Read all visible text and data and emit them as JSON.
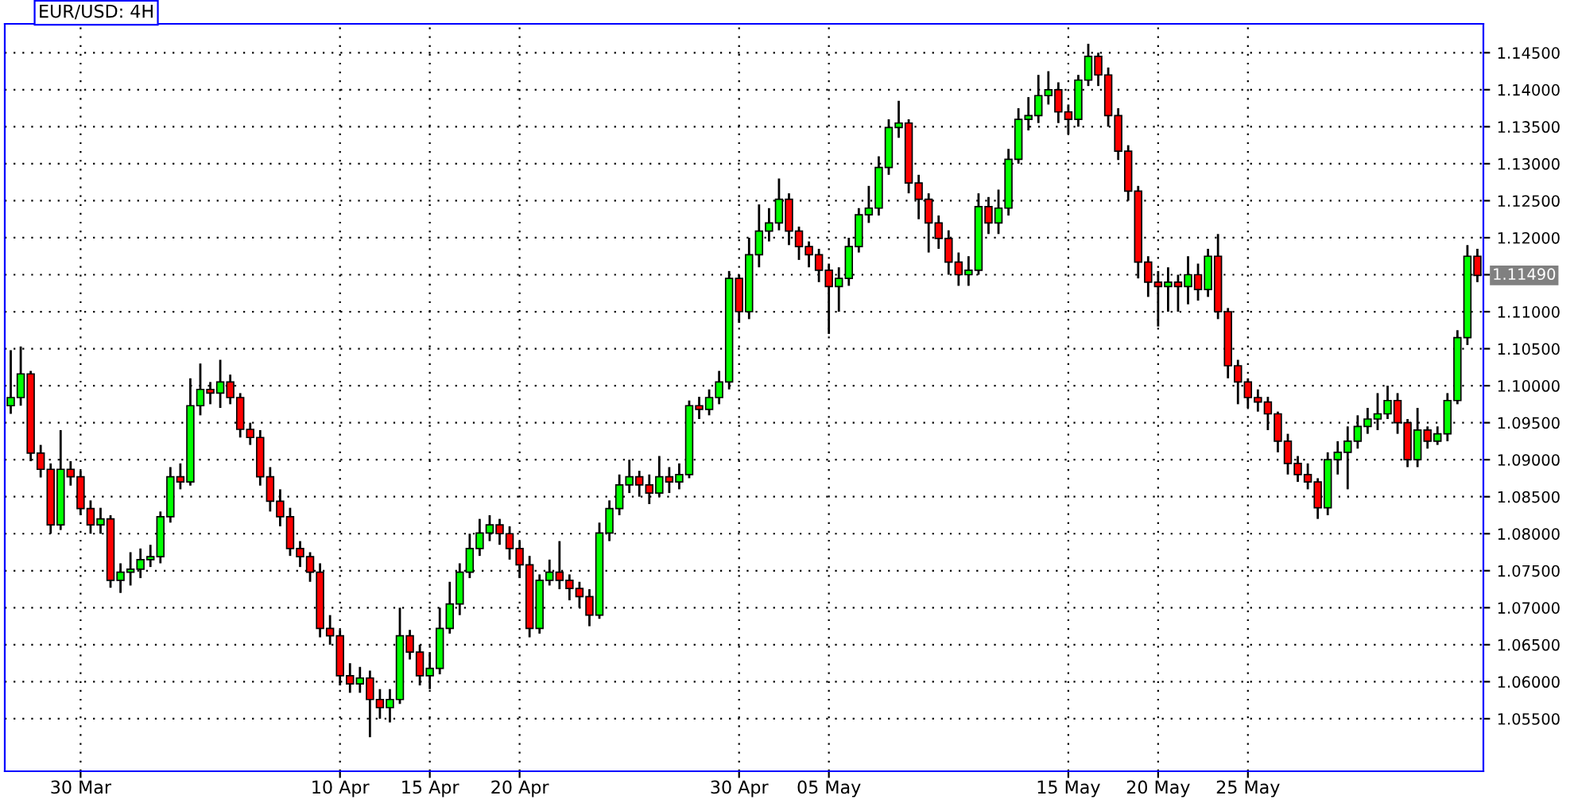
{
  "chart_data": {
    "type": "candlestick",
    "title": "EUR/USD: 4H",
    "categories": [
      null,
      null,
      null,
      null,
      null,
      null,
      null,
      "30 Mar",
      null,
      null,
      null,
      null,
      null,
      null,
      null,
      null,
      null,
      null,
      null,
      null,
      null,
      null,
      null,
      null,
      null,
      null,
      null,
      null,
      null,
      null,
      null,
      null,
      null,
      "10 Apr",
      null,
      null,
      null,
      null,
      null,
      null,
      null,
      null,
      "15 Apr",
      null,
      null,
      null,
      null,
      null,
      null,
      null,
      null,
      "20 Apr",
      null,
      null,
      null,
      null,
      null,
      null,
      null,
      null,
      null,
      null,
      null,
      null,
      null,
      null,
      null,
      null,
      null,
      null,
      null,
      null,
      null,
      "30 Apr",
      null,
      null,
      null,
      null,
      null,
      null,
      null,
      null,
      "05 May",
      null,
      null,
      null,
      null,
      null,
      null,
      null,
      null,
      null,
      null,
      null,
      null,
      null,
      null,
      null,
      null,
      null,
      null,
      null,
      null,
      null,
      null,
      null,
      "15 May",
      null,
      null,
      null,
      null,
      null,
      null,
      null,
      null,
      "20 May",
      null,
      null,
      null,
      null,
      null,
      null,
      null,
      null,
      "25 May",
      null,
      null,
      null,
      null,
      null,
      null,
      null,
      null,
      null,
      null,
      null,
      null,
      null,
      null,
      null,
      null,
      null,
      null,
      null,
      null,
      null,
      null,
      null
    ],
    "ohlc": [
      [
        1.0973,
        1.1048,
        1.0962,
        1.0984
      ],
      [
        1.0984,
        1.1053,
        1.0973,
        1.1016
      ],
      [
        1.1016,
        1.102,
        1.0898,
        1.0909
      ],
      [
        1.0909,
        1.092,
        1.0876,
        1.0887
      ],
      [
        1.0887,
        1.0895,
        1.08,
        1.0812
      ],
      [
        1.0812,
        1.094,
        1.0805,
        1.0887
      ],
      [
        1.0887,
        1.0898,
        1.0865,
        1.0877
      ],
      [
        1.0877,
        1.0885,
        1.0825,
        1.0834
      ],
      [
        1.0834,
        1.0845,
        1.08,
        1.0812
      ],
      [
        1.0812,
        1.0835,
        1.08,
        1.082
      ],
      [
        1.082,
        1.0825,
        1.0727,
        1.0737
      ],
      [
        1.0737,
        1.076,
        1.072,
        1.0748
      ],
      [
        1.0748,
        1.0775,
        1.073,
        1.0752
      ],
      [
        1.0752,
        1.078,
        1.074,
        1.0765
      ],
      [
        1.0765,
        1.0785,
        1.0755,
        1.0769
      ],
      [
        1.0769,
        1.083,
        1.076,
        1.0823
      ],
      [
        1.0823,
        1.089,
        1.0815,
        1.0877
      ],
      [
        1.0877,
        1.0895,
        1.086,
        1.087
      ],
      [
        1.087,
        1.101,
        1.0865,
        1.0973
      ],
      [
        1.0973,
        1.103,
        1.096,
        1.0995
      ],
      [
        1.0995,
        1.1005,
        1.0975,
        1.099
      ],
      [
        1.099,
        1.1035,
        1.097,
        1.1005
      ],
      [
        1.1005,
        1.1015,
        1.0975,
        1.0984
      ],
      [
        1.0984,
        1.099,
        1.093,
        1.0941
      ],
      [
        1.0941,
        1.095,
        1.092,
        1.093
      ],
      [
        1.093,
        1.094,
        1.0865,
        1.0877
      ],
      [
        1.0877,
        1.089,
        1.083,
        1.0844
      ],
      [
        1.0844,
        1.086,
        1.081,
        1.0823
      ],
      [
        1.0823,
        1.0835,
        1.077,
        1.078
      ],
      [
        1.078,
        1.079,
        1.0755,
        1.0769
      ],
      [
        1.0769,
        1.0775,
        1.0735,
        1.0748
      ],
      [
        1.0748,
        1.076,
        1.066,
        1.0672
      ],
      [
        1.0672,
        1.069,
        1.065,
        1.0662
      ],
      [
        1.0662,
        1.067,
        1.0595,
        1.0608
      ],
      [
        1.0608,
        1.0625,
        1.0585,
        1.0597
      ],
      [
        1.0597,
        1.062,
        1.0585,
        1.0605
      ],
      [
        1.0605,
        1.0615,
        1.0525,
        1.0576
      ],
      [
        1.0576,
        1.059,
        1.055,
        1.0565
      ],
      [
        1.0565,
        1.059,
        1.0545,
        1.0576
      ],
      [
        1.0576,
        1.07,
        1.057,
        1.0662
      ],
      [
        1.0662,
        1.067,
        1.063,
        1.064
      ],
      [
        1.064,
        1.065,
        1.0595,
        1.0608
      ],
      [
        1.0608,
        1.064,
        1.059,
        1.0618
      ],
      [
        1.0618,
        1.07,
        1.061,
        1.0672
      ],
      [
        1.0672,
        1.0735,
        1.0665,
        1.0705
      ],
      [
        1.0705,
        1.076,
        1.069,
        1.0748
      ],
      [
        1.0748,
        1.08,
        1.074,
        1.078
      ],
      [
        1.078,
        1.082,
        1.077,
        1.0801
      ],
      [
        1.0801,
        1.0825,
        1.079,
        1.0812
      ],
      [
        1.0812,
        1.082,
        1.0785,
        1.08
      ],
      [
        1.08,
        1.081,
        1.0765,
        1.078
      ],
      [
        1.078,
        1.079,
        1.074,
        1.0758
      ],
      [
        1.0758,
        1.077,
        1.066,
        1.0672
      ],
      [
        1.0672,
        1.0745,
        1.0665,
        1.0737
      ],
      [
        1.0737,
        1.0765,
        1.073,
        1.0748
      ],
      [
        1.0748,
        1.079,
        1.0725,
        1.0737
      ],
      [
        1.0737,
        1.0745,
        1.071,
        1.0726
      ],
      [
        1.0726,
        1.0735,
        1.07,
        1.0715
      ],
      [
        1.0715,
        1.0725,
        1.0675,
        1.069
      ],
      [
        1.069,
        1.0815,
        1.0685,
        1.0801
      ],
      [
        1.0801,
        1.0845,
        1.079,
        1.0834
      ],
      [
        1.0834,
        1.088,
        1.0825,
        1.0866
      ],
      [
        1.0866,
        1.09,
        1.0855,
        1.0877
      ],
      [
        1.0877,
        1.0885,
        1.085,
        1.0866
      ],
      [
        1.0866,
        1.088,
        1.084,
        1.0855
      ],
      [
        1.0855,
        1.0905,
        1.085,
        1.0877
      ],
      [
        1.0877,
        1.089,
        1.0855,
        1.087
      ],
      [
        1.087,
        1.0895,
        1.086,
        1.088
      ],
      [
        1.088,
        1.098,
        1.0875,
        1.0973
      ],
      [
        1.0973,
        1.0985,
        1.0955,
        1.0968
      ],
      [
        1.0968,
        1.0995,
        1.096,
        1.0984
      ],
      [
        1.0984,
        1.102,
        1.0975,
        1.1005
      ],
      [
        1.1005,
        1.1155,
        1.0995,
        1.1145
      ],
      [
        1.1145,
        1.115,
        1.1085,
        1.11
      ],
      [
        1.11,
        1.12,
        1.109,
        1.1177
      ],
      [
        1.1177,
        1.1245,
        1.116,
        1.1209
      ],
      [
        1.1209,
        1.124,
        1.1195,
        1.122
      ],
      [
        1.122,
        1.128,
        1.121,
        1.1252
      ],
      [
        1.1252,
        1.126,
        1.119,
        1.1209
      ],
      [
        1.1209,
        1.1215,
        1.117,
        1.1188
      ],
      [
        1.1188,
        1.1195,
        1.116,
        1.1177
      ],
      [
        1.1177,
        1.1185,
        1.114,
        1.1156
      ],
      [
        1.1156,
        1.1165,
        1.107,
        1.1134
      ],
      [
        1.1134,
        1.116,
        1.11,
        1.1145
      ],
      [
        1.1145,
        1.12,
        1.1135,
        1.1188
      ],
      [
        1.1188,
        1.124,
        1.118,
        1.1231
      ],
      [
        1.1231,
        1.127,
        1.122,
        1.124
      ],
      [
        1.124,
        1.131,
        1.123,
        1.1295
      ],
      [
        1.1295,
        1.136,
        1.1285,
        1.1349
      ],
      [
        1.1349,
        1.1385,
        1.1335,
        1.1355
      ],
      [
        1.1355,
        1.136,
        1.126,
        1.1274
      ],
      [
        1.1274,
        1.1285,
        1.1225,
        1.1252
      ],
      [
        1.1252,
        1.126,
        1.118,
        1.122
      ],
      [
        1.122,
        1.123,
        1.1185,
        1.1199
      ],
      [
        1.1199,
        1.121,
        1.115,
        1.1167
      ],
      [
        1.1167,
        1.118,
        1.1135,
        1.115
      ],
      [
        1.115,
        1.1175,
        1.1135,
        1.1156
      ],
      [
        1.1156,
        1.126,
        1.115,
        1.1242
      ],
      [
        1.1242,
        1.1255,
        1.1205,
        1.122
      ],
      [
        1.122,
        1.1265,
        1.1205,
        1.124
      ],
      [
        1.124,
        1.132,
        1.123,
        1.1306
      ],
      [
        1.1306,
        1.1375,
        1.13,
        1.136
      ],
      [
        1.136,
        1.139,
        1.1345,
        1.1365
      ],
      [
        1.1365,
        1.142,
        1.1355,
        1.1392
      ],
      [
        1.1392,
        1.1425,
        1.138,
        1.14
      ],
      [
        1.14,
        1.141,
        1.1355,
        1.137
      ],
      [
        1.137,
        1.138,
        1.134,
        1.136
      ],
      [
        1.136,
        1.142,
        1.135,
        1.1413
      ],
      [
        1.1413,
        1.1462,
        1.1405,
        1.1445
      ],
      [
        1.1445,
        1.145,
        1.1405,
        1.142
      ],
      [
        1.142,
        1.143,
        1.135,
        1.1365
      ],
      [
        1.1365,
        1.1375,
        1.1305,
        1.1317
      ],
      [
        1.1317,
        1.1325,
        1.125,
        1.1263
      ],
      [
        1.1263,
        1.127,
        1.1145,
        1.1167
      ],
      [
        1.1167,
        1.1175,
        1.112,
        1.114
      ],
      [
        1.114,
        1.1155,
        1.108,
        1.1134
      ],
      [
        1.1134,
        1.116,
        1.11,
        1.114
      ],
      [
        1.114,
        1.115,
        1.11,
        1.1134
      ],
      [
        1.1134,
        1.1175,
        1.111,
        1.115
      ],
      [
        1.115,
        1.1165,
        1.1115,
        1.113
      ],
      [
        1.113,
        1.1185,
        1.112,
        1.1175
      ],
      [
        1.1175,
        1.1205,
        1.109,
        1.11
      ],
      [
        1.11,
        1.1105,
        1.101,
        1.1027
      ],
      [
        1.1027,
        1.1035,
        1.0975,
        1.1005
      ],
      [
        1.1005,
        1.101,
        1.097,
        1.0984
      ],
      [
        1.0984,
        1.0995,
        1.0965,
        1.0978
      ],
      [
        1.0978,
        1.0985,
        1.094,
        1.0962
      ],
      [
        1.0962,
        1.0965,
        1.091,
        1.0925
      ],
      [
        1.0925,
        1.0935,
        1.088,
        1.0895
      ],
      [
        1.0895,
        1.0905,
        1.087,
        1.088
      ],
      [
        1.088,
        1.0895,
        1.086,
        1.087
      ],
      [
        1.087,
        1.0875,
        1.082,
        1.0835
      ],
      [
        1.0835,
        1.091,
        1.0825,
        1.09
      ],
      [
        1.09,
        1.0925,
        1.088,
        1.091
      ],
      [
        1.091,
        1.0945,
        1.086,
        1.0925
      ],
      [
        1.0925,
        1.096,
        1.0915,
        1.0945
      ],
      [
        1.0945,
        1.097,
        1.0935,
        1.0955
      ],
      [
        1.0955,
        1.099,
        1.094,
        1.0962
      ],
      [
        1.0962,
        1.1,
        1.0955,
        1.098
      ],
      [
        1.098,
        1.099,
        1.0935,
        1.095
      ],
      [
        1.095,
        1.0955,
        1.089,
        1.09
      ],
      [
        1.09,
        1.097,
        1.089,
        1.094
      ],
      [
        1.094,
        1.0945,
        1.0915,
        1.0925
      ],
      [
        1.0925,
        1.0945,
        1.092,
        1.0935
      ],
      [
        1.0935,
        1.099,
        1.0925,
        1.098
      ],
      [
        1.098,
        1.1075,
        1.0975,
        1.1065
      ],
      [
        1.1065,
        1.119,
        1.1055,
        1.1175
      ],
      [
        1.1175,
        1.1185,
        1.114,
        1.1149
      ]
    ],
    "colors": [
      "#00ff00",
      "#00ff00",
      "#ff0000",
      "#ff0000",
      "#ff0000",
      "#00ff00",
      "#ff0000",
      "#ff0000",
      "#ff0000",
      "#00ff00",
      "#ff0000",
      "#00ff00",
      "#00ff00",
      "#00ff00",
      "#00ff00",
      "#00ff00",
      "#00ff00",
      "#ff0000",
      "#00ff00",
      "#00ff00",
      "#ff0000",
      "#00ff00",
      "#ff0000",
      "#ff0000",
      "#ff0000",
      "#ff0000",
      "#ff0000",
      "#ff0000",
      "#ff0000",
      "#ff0000",
      "#ff0000",
      "#ff0000",
      "#ff0000",
      "#ff0000",
      "#ff0000",
      "#00ff00",
      "#ff0000",
      "#ff0000",
      "#00ff00",
      "#00ff00",
      "#ff0000",
      "#ff0000",
      "#00ff00",
      "#00ff00",
      "#00ff00",
      "#00ff00",
      "#00ff00",
      "#00ff00",
      "#00ff00",
      "#ff0000",
      "#ff0000",
      "#ff0000",
      "#ff0000",
      "#00ff00",
      "#00ff00",
      "#ff0000",
      "#ff0000",
      "#ff0000",
      "#ff0000",
      "#00ff00",
      "#00ff00",
      "#00ff00",
      "#00ff00",
      "#ff0000",
      "#ff0000",
      "#00ff00",
      "#ff0000",
      "#00ff00",
      "#00ff00",
      "#ff0000",
      "#00ff00",
      "#00ff00",
      "#00ff00",
      "#ff0000",
      "#00ff00",
      "#00ff00",
      "#00ff00",
      "#00ff00",
      "#ff0000",
      "#ff0000",
      "#ff0000",
      "#ff0000",
      "#ff0000",
      "#00ff00",
      "#00ff00",
      "#00ff00",
      "#00ff00",
      "#00ff00",
      "#00ff00",
      "#00ff00",
      "#ff0000",
      "#ff0000",
      "#ff0000",
      "#ff0000",
      "#ff0000",
      "#ff0000",
      "#00ff00",
      "#00ff00",
      "#ff0000",
      "#00ff00",
      "#00ff00",
      "#00ff00",
      "#00ff00",
      "#00ff00",
      "#00ff00",
      "#ff0000",
      "#ff0000",
      "#00ff00",
      "#00ff00",
      "#ff0000",
      "#ff0000",
      "#ff0000",
      "#ff0000",
      "#ff0000",
      "#ff0000",
      "#ff0000",
      "#00ff00",
      "#ff0000",
      "#00ff00",
      "#ff0000",
      "#00ff00",
      "#ff0000",
      "#ff0000",
      "#ff0000",
      "#ff0000",
      "#ff0000",
      "#ff0000",
      "#ff0000",
      "#ff0000",
      "#ff0000",
      "#ff0000",
      "#ff0000",
      "#00ff00",
      "#00ff00",
      "#00ff00",
      "#00ff00",
      "#00ff00",
      "#00ff00",
      "#00ff00",
      "#ff0000",
      "#ff0000",
      "#00ff00",
      "#ff0000",
      "#00ff00",
      "#00ff00",
      "#00ff00",
      "#00ff00",
      "#ff0000"
    ],
    "ylim": [
      1.0479,
      1.1489
    ],
    "yticks": [
      {
        "value": 1.055,
        "label": "1.05500"
      },
      {
        "value": 1.06,
        "label": "1.06000"
      },
      {
        "value": 1.065,
        "label": "1.06500"
      },
      {
        "value": 1.07,
        "label": "1.07000"
      },
      {
        "value": 1.075,
        "label": "1.07500"
      },
      {
        "value": 1.08,
        "label": "1.08000"
      },
      {
        "value": 1.085,
        "label": "1.08500"
      },
      {
        "value": 1.09,
        "label": "1.09000"
      },
      {
        "value": 1.095,
        "label": "1.09500"
      },
      {
        "value": 1.1,
        "label": "1.10000"
      },
      {
        "value": 1.105,
        "label": "1.10500"
      },
      {
        "value": 1.11,
        "label": "1.11000"
      },
      {
        "value": 1.115,
        "label": null
      },
      {
        "value": 1.12,
        "label": "1.12000"
      },
      {
        "value": 1.125,
        "label": "1.12500"
      },
      {
        "value": 1.13,
        "label": "1.13000"
      },
      {
        "value": 1.135,
        "label": "1.13500"
      },
      {
        "value": 1.14,
        "label": "1.14000"
      },
      {
        "value": 1.145,
        "label": "1.14500"
      }
    ],
    "annotations": [
      "1.11490"
    ],
    "grid": true
  }
}
